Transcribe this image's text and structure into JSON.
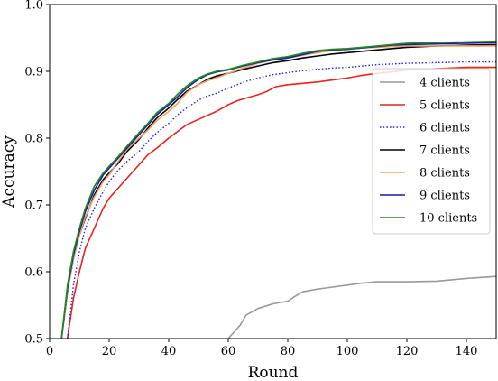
{
  "chart_data": {
    "type": "line",
    "xlabel": "Round",
    "ylabel": "Accuracy",
    "xlim": [
      0,
      150
    ],
    "ylim": [
      0.5,
      1.0
    ],
    "xticks": [
      "0",
      "20",
      "40",
      "60",
      "80",
      "100",
      "120",
      "140"
    ],
    "yticks": [
      "0.5",
      "0.6",
      "0.7",
      "0.8",
      "0.9",
      "1.0"
    ],
    "grid": false,
    "legend_position": "center-right",
    "series": [
      {
        "name": "4 clients",
        "color": "#999999",
        "dash": "solid",
        "points": [
          [
            60,
            0.5
          ],
          [
            62,
            0.51
          ],
          [
            64,
            0.52
          ],
          [
            66,
            0.535
          ],
          [
            70,
            0.545
          ],
          [
            75,
            0.552
          ],
          [
            80,
            0.556
          ],
          [
            82,
            0.562
          ],
          [
            85,
            0.57
          ],
          [
            90,
            0.574
          ],
          [
            95,
            0.577
          ],
          [
            100,
            0.58
          ],
          [
            105,
            0.583
          ],
          [
            110,
            0.585
          ],
          [
            120,
            0.585
          ],
          [
            130,
            0.586
          ],
          [
            135,
            0.588
          ],
          [
            140,
            0.59
          ],
          [
            150,
            0.593
          ]
        ]
      },
      {
        "name": "5 clients",
        "color": "#e8231f",
        "dash": "solid",
        "points": [
          [
            6,
            0.5
          ],
          [
            8,
            0.56
          ],
          [
            10,
            0.6
          ],
          [
            12,
            0.635
          ],
          [
            15,
            0.665
          ],
          [
            18,
            0.695
          ],
          [
            20,
            0.71
          ],
          [
            23,
            0.725
          ],
          [
            26,
            0.74
          ],
          [
            30,
            0.76
          ],
          [
            33,
            0.775
          ],
          [
            36,
            0.785
          ],
          [
            40,
            0.8
          ],
          [
            43,
            0.81
          ],
          [
            46,
            0.82
          ],
          [
            50,
            0.828
          ],
          [
            53,
            0.834
          ],
          [
            56,
            0.84
          ],
          [
            60,
            0.85
          ],
          [
            63,
            0.856
          ],
          [
            66,
            0.86
          ],
          [
            70,
            0.865
          ],
          [
            73,
            0.87
          ],
          [
            76,
            0.877
          ],
          [
            80,
            0.88
          ],
          [
            85,
            0.882
          ],
          [
            90,
            0.884
          ],
          [
            95,
            0.887
          ],
          [
            100,
            0.89
          ],
          [
            105,
            0.894
          ],
          [
            110,
            0.897
          ],
          [
            115,
            0.899
          ],
          [
            120,
            0.902
          ],
          [
            125,
            0.903
          ],
          [
            130,
            0.904
          ],
          [
            135,
            0.905
          ],
          [
            140,
            0.906
          ],
          [
            145,
            0.906
          ],
          [
            150,
            0.906
          ]
        ]
      },
      {
        "name": "6 clients",
        "color": "#2020e0",
        "dash": "dotted",
        "points": [
          [
            6,
            0.5
          ],
          [
            8,
            0.58
          ],
          [
            10,
            0.63
          ],
          [
            12,
            0.665
          ],
          [
            15,
            0.695
          ],
          [
            18,
            0.72
          ],
          [
            20,
            0.735
          ],
          [
            23,
            0.752
          ],
          [
            26,
            0.765
          ],
          [
            30,
            0.78
          ],
          [
            33,
            0.795
          ],
          [
            36,
            0.808
          ],
          [
            40,
            0.822
          ],
          [
            43,
            0.835
          ],
          [
            46,
            0.845
          ],
          [
            50,
            0.857
          ],
          [
            53,
            0.863
          ],
          [
            56,
            0.867
          ],
          [
            60,
            0.875
          ],
          [
            63,
            0.88
          ],
          [
            66,
            0.885
          ],
          [
            70,
            0.89
          ],
          [
            75,
            0.895
          ],
          [
            80,
            0.898
          ],
          [
            85,
            0.901
          ],
          [
            90,
            0.903
          ],
          [
            95,
            0.905
          ],
          [
            100,
            0.906
          ],
          [
            105,
            0.908
          ],
          [
            110,
            0.91
          ],
          [
            115,
            0.911
          ],
          [
            120,
            0.912
          ],
          [
            130,
            0.913
          ],
          [
            140,
            0.914
          ],
          [
            150,
            0.914
          ]
        ]
      },
      {
        "name": "7 clients",
        "color": "#000000",
        "dash": "solid",
        "points": [
          [
            4,
            0.5
          ],
          [
            6,
            0.57
          ],
          [
            8,
            0.62
          ],
          [
            10,
            0.655
          ],
          [
            12,
            0.68
          ],
          [
            15,
            0.715
          ],
          [
            18,
            0.738
          ],
          [
            20,
            0.748
          ],
          [
            23,
            0.762
          ],
          [
            26,
            0.78
          ],
          [
            30,
            0.798
          ],
          [
            33,
            0.815
          ],
          [
            36,
            0.83
          ],
          [
            40,
            0.845
          ],
          [
            43,
            0.858
          ],
          [
            46,
            0.87
          ],
          [
            50,
            0.88
          ],
          [
            53,
            0.888
          ],
          [
            56,
            0.893
          ],
          [
            60,
            0.897
          ],
          [
            65,
            0.903
          ],
          [
            70,
            0.908
          ],
          [
            75,
            0.913
          ],
          [
            80,
            0.916
          ],
          [
            85,
            0.92
          ],
          [
            90,
            0.923
          ],
          [
            95,
            0.926
          ],
          [
            100,
            0.928
          ],
          [
            105,
            0.93
          ],
          [
            110,
            0.932
          ],
          [
            115,
            0.934
          ],
          [
            120,
            0.936
          ],
          [
            130,
            0.938
          ],
          [
            140,
            0.939
          ],
          [
            150,
            0.94
          ]
        ]
      },
      {
        "name": "8 clients",
        "color": "#f5a067",
        "dash": "solid",
        "points": [
          [
            4,
            0.5
          ],
          [
            6,
            0.57
          ],
          [
            8,
            0.62
          ],
          [
            10,
            0.655
          ],
          [
            12,
            0.682
          ],
          [
            15,
            0.712
          ],
          [
            18,
            0.735
          ],
          [
            20,
            0.745
          ],
          [
            23,
            0.765
          ],
          [
            26,
            0.783
          ],
          [
            30,
            0.8
          ],
          [
            33,
            0.812
          ],
          [
            36,
            0.826
          ],
          [
            40,
            0.84
          ],
          [
            43,
            0.852
          ],
          [
            46,
            0.868
          ],
          [
            50,
            0.88
          ],
          [
            53,
            0.886
          ],
          [
            56,
            0.89
          ],
          [
            60,
            0.897
          ],
          [
            65,
            0.905
          ],
          [
            70,
            0.912
          ],
          [
            75,
            0.917
          ],
          [
            80,
            0.92
          ],
          [
            85,
            0.924
          ],
          [
            90,
            0.928
          ],
          [
            95,
            0.931
          ],
          [
            100,
            0.933
          ],
          [
            105,
            0.935
          ],
          [
            110,
            0.936
          ],
          [
            115,
            0.937
          ],
          [
            120,
            0.938
          ],
          [
            130,
            0.938
          ],
          [
            140,
            0.938
          ],
          [
            150,
            0.938
          ]
        ]
      },
      {
        "name": "9 clients",
        "color": "#1a1aa0",
        "dash": "solid",
        "points": [
          [
            4,
            0.5
          ],
          [
            6,
            0.575
          ],
          [
            8,
            0.625
          ],
          [
            10,
            0.66
          ],
          [
            12,
            0.69
          ],
          [
            15,
            0.722
          ],
          [
            18,
            0.745
          ],
          [
            20,
            0.755
          ],
          [
            23,
            0.77
          ],
          [
            26,
            0.785
          ],
          [
            30,
            0.805
          ],
          [
            33,
            0.82
          ],
          [
            36,
            0.835
          ],
          [
            40,
            0.85
          ],
          [
            43,
            0.862
          ],
          [
            46,
            0.875
          ],
          [
            50,
            0.888
          ],
          [
            53,
            0.895
          ],
          [
            56,
            0.899
          ],
          [
            60,
            0.902
          ],
          [
            65,
            0.908
          ],
          [
            70,
            0.913
          ],
          [
            75,
            0.917
          ],
          [
            80,
            0.92
          ],
          [
            85,
            0.925
          ],
          [
            90,
            0.93
          ],
          [
            95,
            0.932
          ],
          [
            100,
            0.933
          ],
          [
            105,
            0.935
          ],
          [
            110,
            0.937
          ],
          [
            115,
            0.939
          ],
          [
            120,
            0.94
          ],
          [
            130,
            0.941
          ],
          [
            140,
            0.942
          ],
          [
            150,
            0.943
          ]
        ]
      },
      {
        "name": "10 clients",
        "color": "#1f8a1f",
        "dash": "solid",
        "points": [
          [
            4,
            0.5
          ],
          [
            6,
            0.58
          ],
          [
            8,
            0.63
          ],
          [
            10,
            0.665
          ],
          [
            12,
            0.695
          ],
          [
            15,
            0.728
          ],
          [
            18,
            0.748
          ],
          [
            20,
            0.758
          ],
          [
            23,
            0.772
          ],
          [
            26,
            0.788
          ],
          [
            30,
            0.808
          ],
          [
            33,
            0.822
          ],
          [
            36,
            0.838
          ],
          [
            40,
            0.852
          ],
          [
            43,
            0.866
          ],
          [
            46,
            0.878
          ],
          [
            50,
            0.89
          ],
          [
            53,
            0.896
          ],
          [
            56,
            0.9
          ],
          [
            60,
            0.903
          ],
          [
            65,
            0.909
          ],
          [
            70,
            0.914
          ],
          [
            75,
            0.919
          ],
          [
            80,
            0.922
          ],
          [
            85,
            0.927
          ],
          [
            90,
            0.931
          ],
          [
            95,
            0.933
          ],
          [
            100,
            0.934
          ],
          [
            105,
            0.936
          ],
          [
            110,
            0.938
          ],
          [
            115,
            0.94
          ],
          [
            120,
            0.942
          ],
          [
            130,
            0.943
          ],
          [
            140,
            0.944
          ],
          [
            150,
            0.945
          ]
        ]
      }
    ]
  }
}
